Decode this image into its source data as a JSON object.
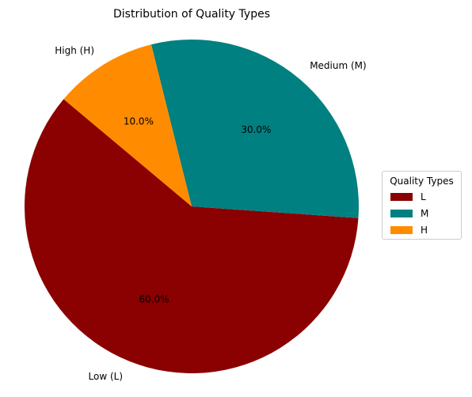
{
  "chart_data": {
    "type": "pie",
    "title": "Distribution of Quality Types",
    "slices": [
      {
        "label": "Low (L)",
        "key": "L",
        "value": 60,
        "pct_label": "60.0%",
        "color": "#8B0000"
      },
      {
        "label": "Medium (M)",
        "key": "M",
        "value": 30,
        "pct_label": "30.0%",
        "color": "#008080"
      },
      {
        "label": "High (H)",
        "key": "H",
        "value": 10,
        "pct_label": "10.0%",
        "color": "#FF8C00"
      }
    ],
    "legend": {
      "title": "Quality Types",
      "placement": "right",
      "items": [
        "L",
        "M",
        "H"
      ]
    }
  }
}
